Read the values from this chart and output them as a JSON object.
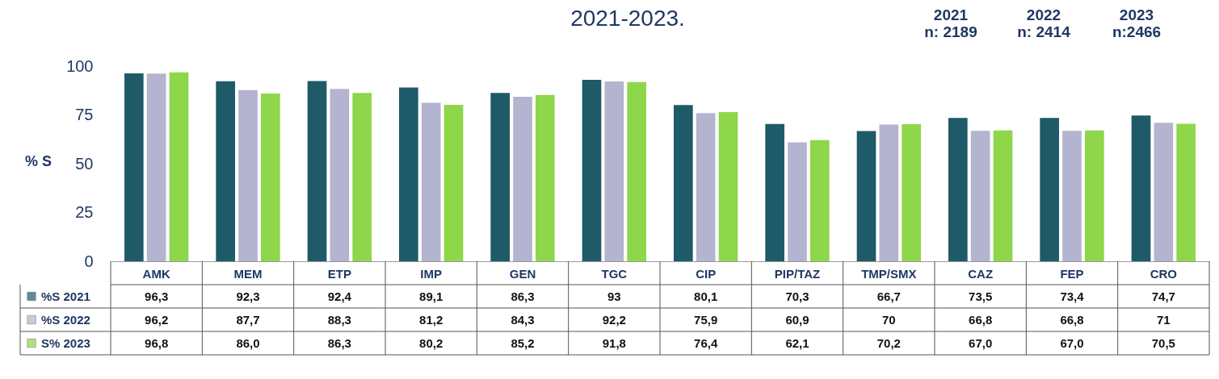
{
  "chart_data": {
    "type": "bar",
    "title": "2021-2023.",
    "ylabel": "% S",
    "annotations": [
      "2021\nn: 2189",
      "2022\nn: 2414",
      "2023\nn:2466"
    ],
    "categories": [
      "AMK",
      "MEM",
      "ETP",
      "IMP",
      "GEN",
      "TGC",
      "CIP",
      "PIP/TAZ",
      "TMP/SMX",
      "CAZ",
      "FEP",
      "CRO"
    ],
    "series": [
      {
        "name": "%S 2021",
        "color": "#1e5a68",
        "values": [
          96.3,
          92.3,
          92.4,
          89.1,
          86.3,
          93,
          80.1,
          70.3,
          66.7,
          73.5,
          73.4,
          74.7
        ],
        "value_labels": [
          "96,3",
          "92,3",
          "92,4",
          "89,1",
          "86,3",
          "93",
          "80,1",
          "70,3",
          "66,7",
          "73,5",
          "73,4",
          "74,7"
        ]
      },
      {
        "name": "%S 2022",
        "color": "#b4b4d0",
        "values": [
          96.2,
          87.7,
          88.3,
          81.2,
          84.3,
          92.2,
          75.9,
          60.9,
          70,
          66.8,
          66.8,
          71
        ],
        "value_labels": [
          "96,2",
          "87,7",
          "88,3",
          "81,2",
          "84,3",
          "92,2",
          "75,9",
          "60,9",
          "70",
          "66,8",
          "66,8",
          "71"
        ]
      },
      {
        "name": "S% 2023",
        "color": "#8ed64a",
        "values": [
          96.8,
          86.0,
          86.3,
          80.2,
          85.2,
          91.8,
          76.4,
          62.1,
          70.2,
          67.0,
          67.0,
          70.5
        ],
        "value_labels": [
          "96,8",
          "86,0",
          "86,3",
          "80,2",
          "85,2",
          "91,8",
          "76,4",
          "62,1",
          "70,2",
          "67,0",
          "67,0",
          "70,5"
        ]
      }
    ],
    "ylim": [
      0,
      100
    ],
    "yticks": [
      0,
      25,
      50,
      75,
      100
    ],
    "grid": false,
    "legend": "bottom"
  }
}
